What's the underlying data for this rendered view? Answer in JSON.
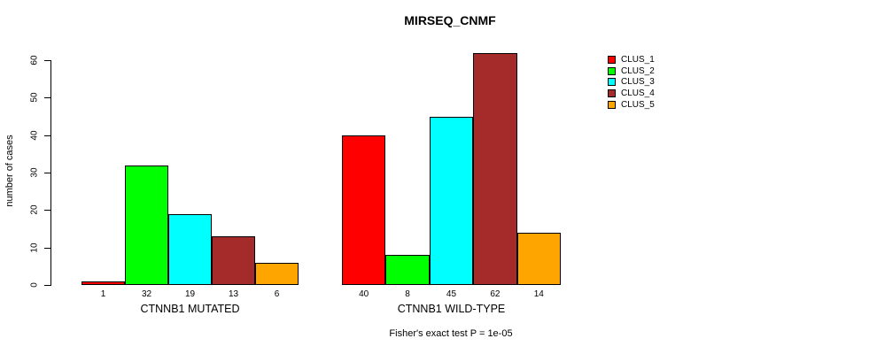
{
  "chart_data": {
    "type": "bar",
    "title": "MIRSEQ_CNMF",
    "xlabel": "",
    "ylabel": "number of cases",
    "ylim": [
      0,
      60
    ],
    "yticks": [
      0,
      10,
      20,
      30,
      40,
      50,
      60
    ],
    "grid": false,
    "legend_position": "right",
    "series_labels": [
      "CLUS_1",
      "CLUS_2",
      "CLUS_3",
      "CLUS_4",
      "CLUS_5"
    ],
    "colors": [
      "#FF0000",
      "#00FF00",
      "#00FFFF",
      "#A52A2A",
      "#FFA500"
    ],
    "groups": [
      {
        "label": "CTNNB1 MUTATED",
        "values": [
          1,
          32,
          19,
          13,
          6
        ]
      },
      {
        "label": "CTNNB1 WILD-TYPE",
        "values": [
          40,
          8,
          45,
          62,
          14
        ]
      }
    ],
    "bar_value_labels_shown": true,
    "annotation": "Fisher's exact test P = 1e-05"
  }
}
